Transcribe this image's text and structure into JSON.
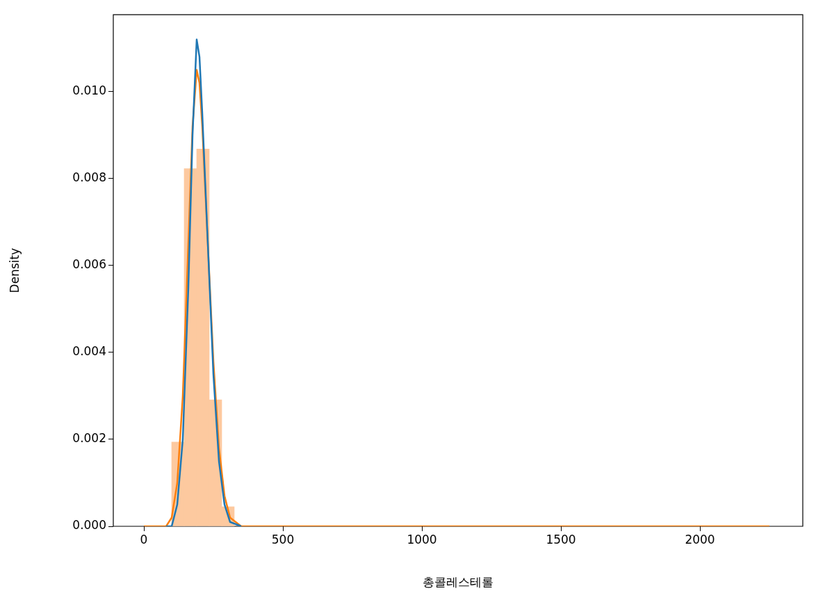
{
  "chart_data": {
    "type": "histogram",
    "xlabel": "총콜레스테롤",
    "ylabel": "Density",
    "bins": [
      100,
      145,
      190,
      235,
      280,
      325
    ],
    "values": [
      0.00194,
      0.00823,
      0.00868,
      0.00291,
      0.00045
    ],
    "color": "#fdc99f",
    "series": [
      {
        "type": "line",
        "color": "#1f77b4",
        "x": [
          80,
          100,
          120,
          140,
          160,
          175,
          190,
          200,
          210,
          230,
          250,
          270,
          290,
          310,
          350
        ],
        "values": [
          0,
          0,
          0.0005,
          0.002,
          0.0055,
          0.009,
          0.0112,
          0.0108,
          0.0095,
          0.0065,
          0.0035,
          0.0015,
          0.0005,
          0.0001,
          0
        ]
      },
      {
        "type": "line",
        "color": "#ff7f0e",
        "x": [
          0,
          80,
          100,
          120,
          140,
          160,
          175,
          190,
          200,
          210,
          230,
          250,
          270,
          290,
          310,
          350,
          400,
          2250
        ],
        "values": [
          0,
          0,
          0.0002,
          0.001,
          0.003,
          0.0065,
          0.0092,
          0.0105,
          0.0102,
          0.0092,
          0.0065,
          0.0038,
          0.0018,
          0.0007,
          0.0002,
          0,
          0,
          0
        ]
      }
    ],
    "xlim": [
      -110,
      2370
    ],
    "ylim": [
      0,
      0.01177
    ],
    "xticks": [
      0,
      500,
      1000,
      1500,
      2000
    ],
    "yticks": [
      {
        "value": 0,
        "label": "0.000"
      },
      {
        "value": 0.002,
        "label": "0.002"
      },
      {
        "value": 0.004,
        "label": "0.004"
      },
      {
        "value": 0.006,
        "label": "0.006"
      },
      {
        "value": 0.008,
        "label": "0.008"
      },
      {
        "value": 0.01,
        "label": "0.010"
      }
    ]
  }
}
